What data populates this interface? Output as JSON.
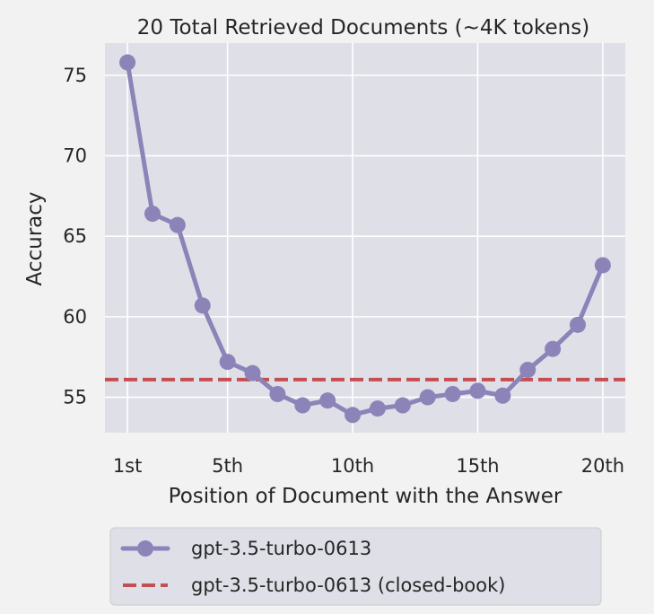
{
  "chart_data": {
    "type": "line",
    "title": "20 Total Retrieved Documents (~4K tokens)",
    "xlabel": "Position of Document with the Answer",
    "ylabel": "Accuracy",
    "x": [
      1,
      2,
      3,
      4,
      5,
      6,
      7,
      8,
      9,
      10,
      11,
      12,
      13,
      14,
      15,
      16,
      17,
      18,
      19,
      20
    ],
    "xticks": [
      {
        "value": 1,
        "label": "1st"
      },
      {
        "value": 5,
        "label": "5th"
      },
      {
        "value": 10,
        "label": "10th"
      },
      {
        "value": 15,
        "label": "15th"
      },
      {
        "value": 20,
        "label": "20th"
      }
    ],
    "yticks": [
      55,
      60,
      65,
      70,
      75
    ],
    "xlim": [
      0.1,
      20.9
    ],
    "ylim": [
      52.8,
      77.0
    ],
    "grid": true,
    "series": [
      {
        "name": "gpt-3.5-turbo-0613",
        "style": "line-markers",
        "color": "#8c84b8",
        "values": [
          75.8,
          66.4,
          65.7,
          60.7,
          57.2,
          56.5,
          55.2,
          54.5,
          54.8,
          53.9,
          54.3,
          54.5,
          55.0,
          55.2,
          55.4,
          55.1,
          56.7,
          58.0,
          59.5,
          63.2
        ]
      },
      {
        "name": "gpt-3.5-turbo-0613 (closed-book)",
        "style": "dashed",
        "color": "#c44e52",
        "value": 56.1
      }
    ],
    "legend_position": "bottom"
  },
  "colors": {
    "plot_background": "#dfdfe8",
    "grid": "#ffffff",
    "page_background": "#f2f2f2"
  }
}
